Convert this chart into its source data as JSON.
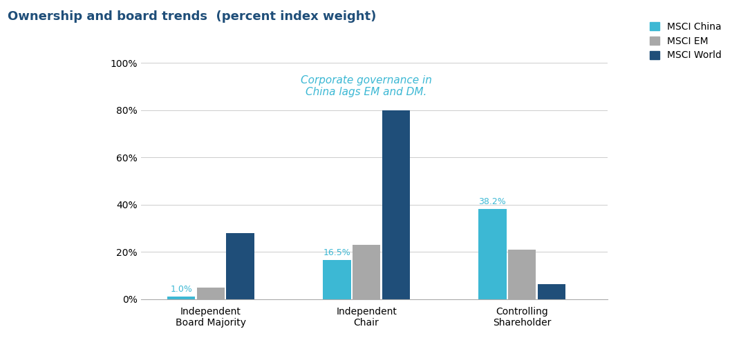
{
  "title": "Ownership and board trends  (percent index weight)",
  "categories": [
    "Independent\nBoard Majority",
    "Independent\nChair",
    "Controlling\nShareholder"
  ],
  "series": {
    "MSCI China": [
      1.0,
      16.5,
      38.2
    ],
    "MSCI EM": [
      5.0,
      23.0,
      21.0
    ],
    "MSCI World": [
      28.0,
      80.0,
      6.5
    ]
  },
  "colors": {
    "MSCI China": "#3CB8D4",
    "MSCI EM": "#A8A8A8",
    "MSCI World": "#1F4E79"
  },
  "annotation_text": "Corporate governance in\nChina lags EM and DM.",
  "annotation_color": "#3CB8D4",
  "ylim": [
    0,
    108
  ],
  "yticks": [
    0,
    20,
    40,
    60,
    80,
    100
  ],
  "yticklabels": [
    "0%",
    "20%",
    "40%",
    "60%",
    "80%",
    "100%"
  ],
  "title_color": "#1F4E79",
  "background_color": "#FFFFFF",
  "bar_width": 0.18,
  "legend_fontsize": 10,
  "tick_fontsize": 10,
  "title_fontsize": 13
}
